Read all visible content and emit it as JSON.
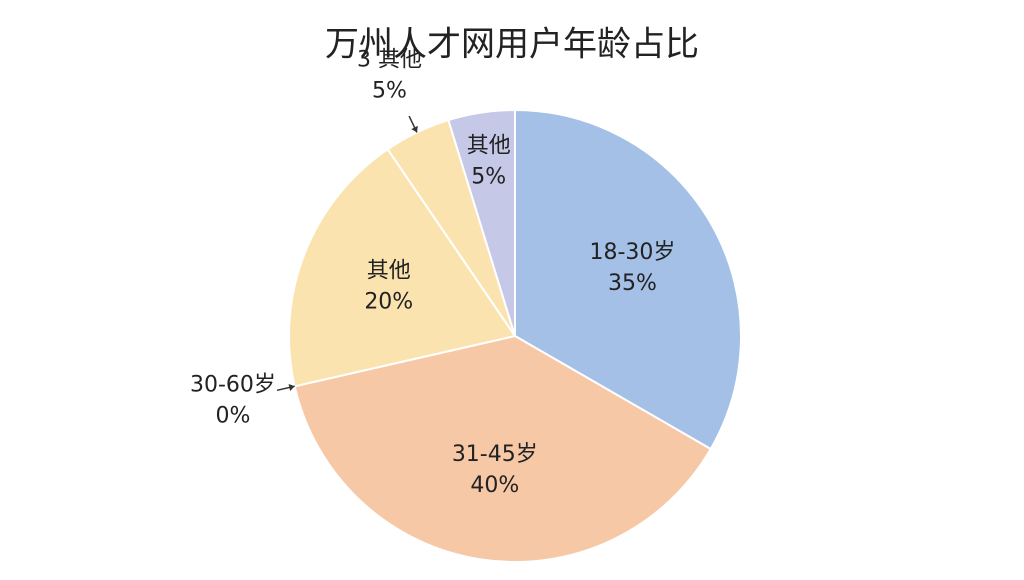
{
  "chart_data": {
    "type": "pie",
    "title": "万州人才网用户年龄占比",
    "categories": [
      "18-30岁",
      "31-45岁",
      "30-60岁",
      "其他",
      "3 其他",
      "其他"
    ],
    "values": [
      35,
      40,
      0,
      20,
      5,
      5
    ],
    "value_labels": [
      "35%",
      "40%",
      "0%",
      "20%",
      "5%",
      "5%"
    ],
    "colors": [
      "#a4c0e6",
      "#f7c8a6",
      "#f7c8a6",
      "#fbe3b0",
      "#fbe3b0",
      "#c6c8e8"
    ],
    "label_position": [
      "inside",
      "inside",
      "outside",
      "inside",
      "outside",
      "inside"
    ]
  }
}
